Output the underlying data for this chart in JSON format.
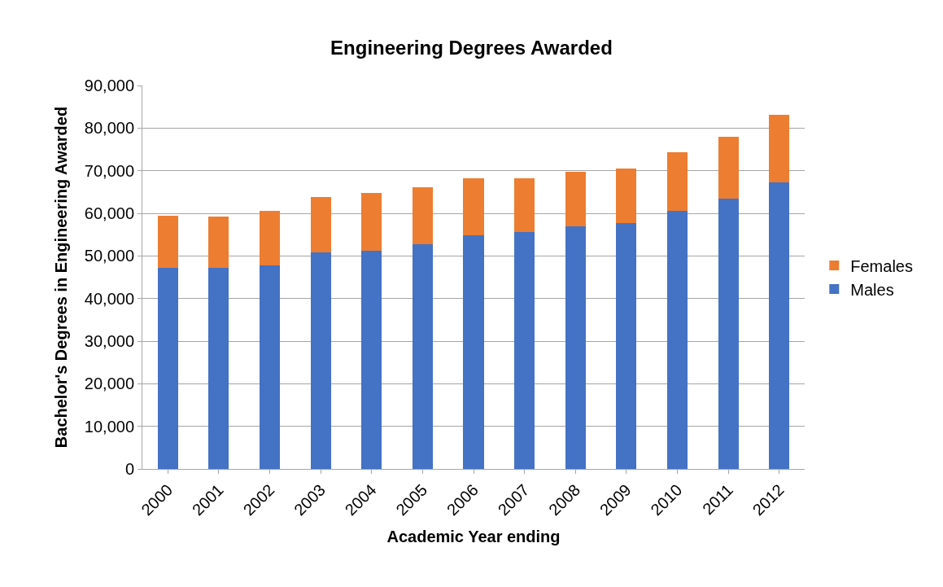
{
  "chart_data": {
    "type": "bar",
    "title": "Engineering Degrees Awarded",
    "xlabel": "Academic Year ending",
    "ylabel": "Bachelor's Degrees in Engineering Awarded",
    "categories": [
      "2000",
      "2001",
      "2002",
      "2003",
      "2004",
      "2005",
      "2006",
      "2007",
      "2008",
      "2009",
      "2010",
      "2011",
      "2012"
    ],
    "stacked": true,
    "series": [
      {
        "name": "Males",
        "color": "#4472c4",
        "values": [
          47200,
          47200,
          47800,
          50800,
          51300,
          52800,
          54800,
          55600,
          56900,
          57700,
          60600,
          63500,
          67300
        ]
      },
      {
        "name": "Females",
        "color": "#ed7d31",
        "values": [
          12200,
          12000,
          12800,
          13000,
          13400,
          13300,
          13500,
          12700,
          12900,
          12900,
          13800,
          14500,
          15900
        ]
      }
    ],
    "ylim": [
      0,
      90000
    ],
    "yticks": [
      {
        "value": 0,
        "label": "0"
      },
      {
        "value": 10000,
        "label": "10,000"
      },
      {
        "value": 20000,
        "label": "20,000"
      },
      {
        "value": 30000,
        "label": "30,000"
      },
      {
        "value": 40000,
        "label": "40,000"
      },
      {
        "value": 50000,
        "label": "50,000"
      },
      {
        "value": 60000,
        "label": "60,000"
      },
      {
        "value": 70000,
        "label": "70,000"
      },
      {
        "value": 80000,
        "label": "80,000"
      },
      {
        "value": 90000,
        "label": "90,000"
      }
    ],
    "grid": "y",
    "legend": "right"
  }
}
